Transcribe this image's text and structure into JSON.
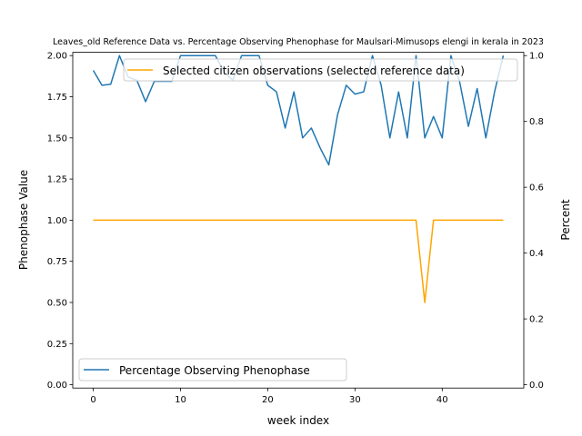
{
  "chart_data": {
    "type": "line",
    "title": "Leaves_old Reference Data vs. Percentage Observing Phenophase for Maulsari-Mimusops elengi in kerala in 2023",
    "xlabel": "week index",
    "ylabel_left": "Phenophase Value",
    "ylabel_right": "Percent",
    "xlim": [
      -2.35,
      49.35
    ],
    "ylim_left": [
      -0.02,
      2.02
    ],
    "ylim_right": [
      -0.01,
      1.01
    ],
    "x_ticks": [
      0,
      10,
      20,
      30,
      40
    ],
    "x_tick_labels": [
      "0",
      "10",
      "20",
      "30",
      "40"
    ],
    "y_left_ticks": [
      0,
      0.25,
      0.5,
      0.75,
      1.0,
      1.25,
      1.5,
      1.75,
      2.0
    ],
    "y_left_tick_labels": [
      "0.00",
      "0.25",
      "0.50",
      "0.75",
      "1.00",
      "1.25",
      "1.50",
      "1.75",
      "2.00"
    ],
    "y_right_ticks": [
      0,
      0.2,
      0.4,
      0.6,
      0.8,
      1.0
    ],
    "y_right_tick_labels": [
      "0.0",
      "0.2",
      "0.4",
      "0.6",
      "0.8",
      "1.0"
    ],
    "series": [
      {
        "name": "Selected citizen observations (selected reference data)",
        "axis": "left",
        "color": "#ffa500",
        "x": [
          0,
          1,
          2,
          3,
          4,
          5,
          6,
          7,
          8,
          9,
          10,
          11,
          12,
          13,
          14,
          15,
          16,
          17,
          18,
          19,
          20,
          21,
          22,
          23,
          24,
          25,
          26,
          27,
          28,
          29,
          30,
          31,
          32,
          33,
          34,
          35,
          36,
          37,
          38,
          39,
          40,
          41,
          42,
          43,
          44,
          45,
          46,
          47
        ],
        "values": [
          1,
          1,
          1,
          1,
          1,
          1,
          1,
          1,
          1,
          1,
          1,
          1,
          1,
          1,
          1,
          1,
          1,
          1,
          1,
          1,
          1,
          1,
          1,
          1,
          1,
          1,
          1,
          1,
          1,
          1,
          1,
          1,
          1,
          1,
          1,
          1,
          1,
          1,
          0.5,
          1,
          1,
          1,
          1,
          1,
          1,
          1,
          1,
          1
        ],
        "legend_position": "upper center"
      },
      {
        "name": "Percentage Observing Phenophase",
        "axis": "right",
        "color": "#1f77b4",
        "x": [
          0,
          1,
          2,
          3,
          4,
          5,
          6,
          7,
          8,
          9,
          10,
          11,
          12,
          13,
          14,
          15,
          16,
          17,
          18,
          19,
          20,
          21,
          22,
          23,
          24,
          25,
          26,
          27,
          28,
          29,
          30,
          31,
          32,
          33,
          34,
          35,
          36,
          37,
          38,
          39,
          40,
          41,
          42,
          43,
          44,
          45,
          46,
          47
        ],
        "values": [
          0.955,
          0.91,
          0.913,
          1.0,
          0.935,
          0.925,
          0.86,
          0.922,
          0.922,
          0.922,
          1.0,
          1.0,
          1.0,
          1.0,
          1.0,
          0.95,
          0.925,
          1.0,
          1.0,
          1.0,
          0.91,
          0.89,
          0.78,
          0.89,
          0.75,
          0.78,
          0.72,
          0.668,
          0.82,
          0.91,
          0.883,
          0.89,
          1.0,
          0.91,
          0.75,
          0.89,
          0.75,
          1.0,
          0.75,
          0.815,
          0.75,
          1.0,
          0.92,
          0.785,
          0.9,
          0.75,
          0.89,
          1.0
        ],
        "legend_position": "lower left"
      }
    ]
  }
}
